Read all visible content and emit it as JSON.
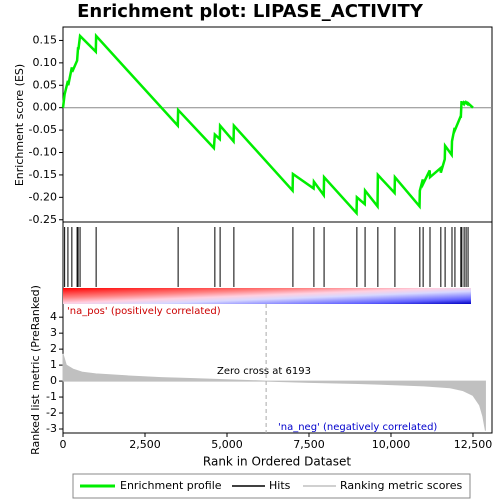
{
  "chart_data": [
    {
      "type": "line",
      "title": "Enrichment plot: LIPASE_ACTIVITY",
      "ylabel": "Enrichment score (ES)",
      "xlim": [
        0,
        13080
      ],
      "ylim": [
        -0.255,
        0.18
      ],
      "yticks": [
        0.15,
        {
          "value": 0.1,
          "label": "0.10"
        },
        0.05,
        {
          "value": 0,
          "label": "0.00"
        },
        -0.05,
        {
          "value": -0.1,
          "label": "-0.10"
        },
        -0.15,
        {
          "value": -0.2,
          "label": "-0.20"
        },
        -0.25
      ],
      "series": [
        {
          "name": "Enrichment profile",
          "color": "#00ee00",
          "x": [
            0,
            50,
            150,
            160,
            270,
            280,
            430,
            460,
            470,
            520,
            1000,
            1010,
            3500,
            3510,
            4600,
            4630,
            4780,
            4790,
            5200,
            5210,
            7000,
            7010,
            7640,
            7650,
            7950,
            7960,
            8950,
            8960,
            9200,
            9210,
            9590,
            9600,
            10110,
            10120,
            10870,
            10880,
            10970,
            10980,
            11180,
            11190,
            11510,
            11520,
            11640,
            11650,
            11850,
            11860,
            11940,
            11950,
            12120,
            12130,
            12150,
            12160,
            12220,
            12230,
            12280,
            12290,
            12340,
            12350,
            12500
          ],
          "values": [
            0,
            0.03,
            0.06,
            0.05,
            0.09,
            0.08,
            0.105,
            0.135,
            0.13,
            0.16,
            0.125,
            0.16,
            -0.04,
            -0.005,
            -0.09,
            -0.06,
            -0.07,
            -0.04,
            -0.075,
            -0.04,
            -0.185,
            -0.148,
            -0.18,
            -0.165,
            -0.195,
            -0.155,
            -0.235,
            -0.2,
            -0.215,
            -0.185,
            -0.22,
            -0.15,
            -0.19,
            -0.155,
            -0.22,
            -0.185,
            -0.16,
            -0.17,
            -0.14,
            -0.155,
            -0.135,
            -0.145,
            -0.115,
            -0.085,
            -0.105,
            -0.075,
            -0.045,
            -0.05,
            -0.02,
            -0.02,
            0.012,
            0.012,
            0.008,
            0.012,
            0.01,
            0.012,
            0.008,
            0.01,
            0
          ]
        }
      ]
    },
    {
      "type": "hits",
      "series": [
        {
          "name": "Hits",
          "color": "#000000",
          "x": [
            50,
            150,
            270,
            430,
            460,
            520,
            1010,
            3510,
            4630,
            4790,
            5210,
            7010,
            7650,
            7960,
            8960,
            9210,
            9600,
            10120,
            10880,
            10980,
            11190,
            11520,
            11650,
            11860,
            11950,
            12130,
            12160,
            12230,
            12290,
            12350
          ]
        }
      ]
    },
    {
      "type": "area",
      "ylabel": "Ranked list metric (PreRanked)",
      "xlabel": "Rank in Ordered Dataset",
      "xlim": [
        0,
        13080
      ],
      "ylim": [
        -3.25,
        4.7
      ],
      "xticks": [
        0,
        {
          "value": 2500,
          "label": "2,500"
        },
        {
          "value": 5000,
          "label": "5,000"
        },
        {
          "value": 7500,
          "label": "7,500"
        },
        {
          "value": 10000,
          "label": "10,000"
        },
        {
          "value": 12500,
          "label": "12,500"
        }
      ],
      "yticks": [
        4,
        3,
        2,
        1,
        0,
        -1,
        -2,
        -3
      ],
      "series": [
        {
          "name": "Ranking metric scores",
          "color": "#c0c0c0",
          "x": [
            0,
            100,
            300,
            600,
            1000,
            2000,
            3000,
            4000,
            5000,
            6193,
            7500,
            9000,
            10000,
            11000,
            11800,
            12200,
            12500,
            12700,
            12800,
            12880
          ],
          "values": [
            1.7,
            1.0,
            0.75,
            0.55,
            0.45,
            0.32,
            0.22,
            0.15,
            0.08,
            0,
            -0.08,
            -0.15,
            -0.22,
            -0.3,
            -0.42,
            -0.6,
            -0.9,
            -1.5,
            -2.2,
            -3.1
          ]
        }
      ],
      "zero_cross": 6193,
      "zero_cross_label": "Zero cross at 6193",
      "pos_label": "'na_pos' (positively correlated)",
      "neg_label": "'na_neg' (negatively correlated)"
    }
  ]
}
